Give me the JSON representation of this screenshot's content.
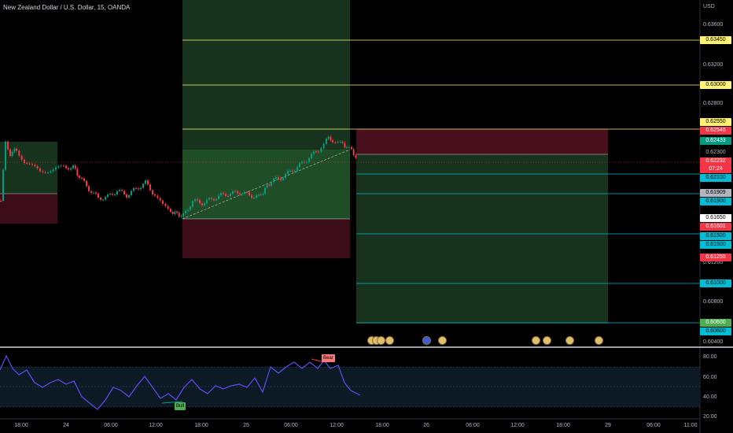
{
  "header": {
    "title": "New Zealand Dollar / U.S. Dollar, 15, OANDA"
  },
  "axis": {
    "currency": "USD",
    "price_ticks": [
      "0.63600",
      "0.63400",
      "0.63200",
      "0.63000",
      "0.62800",
      "0.62600",
      "0.62400",
      "0.62200",
      "0.62000",
      "0.61800",
      "0.61600",
      "0.61400",
      "0.61200",
      "0.61000",
      "0.60800",
      "0.60600",
      "0.60400"
    ],
    "time_ticks": [
      "18:00",
      "24",
      "06:00",
      "12:00",
      "18:00",
      "25",
      "06:00",
      "12:00",
      "18:00",
      "26",
      "06:00",
      "12:00",
      "18:00",
      "29",
      "06:00",
      "11:00"
    ],
    "rsi_ticks": [
      "80.00",
      "60.00",
      "40.00",
      "20.00"
    ]
  },
  "price_tags": [
    {
      "id": "tag-063450",
      "text": "0.63450",
      "bg": "#fff176",
      "fg": "#000000"
    },
    {
      "id": "tag-063000",
      "text": "0.63000",
      "bg": "#fff176",
      "fg": "#000000"
    },
    {
      "id": "tag-062550",
      "text": "0.62550",
      "bg": "#fff176",
      "fg": "#000000"
    },
    {
      "id": "tag-062546",
      "text": "0.62546",
      "bg": "#f23645",
      "fg": "#ffffff"
    },
    {
      "id": "tag-062433",
      "text": "0.62433",
      "bg": "#089981",
      "fg": "#ffffff"
    },
    {
      "id": "tag-062300",
      "text": "0.62300",
      "bg": "#ffffff",
      "fg": "#000000"
    },
    {
      "id": "tag-062232",
      "text": "0.62232",
      "bg": "#f23645",
      "fg": "#ffffff"
    },
    {
      "id": "tag-countdown",
      "text": "07:24",
      "bg": "#f23645",
      "fg": "#ffffff"
    },
    {
      "id": "tag-062100",
      "text": "0.62100",
      "bg": "#00bcd4",
      "fg": "#000000"
    },
    {
      "id": "tag-061909",
      "text": "0.61909",
      "bg": "#b2b5be",
      "fg": "#000000"
    },
    {
      "id": "tag-061900",
      "text": "0.61900",
      "bg": "#00bcd4",
      "fg": "#000000"
    },
    {
      "id": "tag-061650",
      "text": "0.61650",
      "bg": "#ffffff",
      "fg": "#000000"
    },
    {
      "id": "tag-061601",
      "text": "0.61601",
      "bg": "#f23645",
      "fg": "#ffffff"
    },
    {
      "id": "tag-061500",
      "text": "0.61500",
      "bg": "#00bcd4",
      "fg": "#000000"
    },
    {
      "id": "tag-061500b",
      "text": "0.61500",
      "bg": "#00bcd4",
      "fg": "#000000"
    },
    {
      "id": "tag-061255",
      "text": "0.61255",
      "bg": "#f23645",
      "fg": "#ffffff"
    },
    {
      "id": "tag-061000",
      "text": "0.61000",
      "bg": "#00bcd4",
      "fg": "#000000"
    },
    {
      "id": "tag-060600",
      "text": "0.60600",
      "bg": "#4caf50",
      "fg": "#ffffff"
    },
    {
      "id": "tag-060600b",
      "text": "0.60600",
      "bg": "#00bcd4",
      "fg": "#000000"
    }
  ],
  "signals": {
    "bear": "Bear",
    "bull": "Bull"
  },
  "colors": {
    "up": "#089981",
    "down": "#f23645",
    "rsi": "#5b4ff5",
    "level": "#fff176",
    "target": "#00bcd4"
  }
}
